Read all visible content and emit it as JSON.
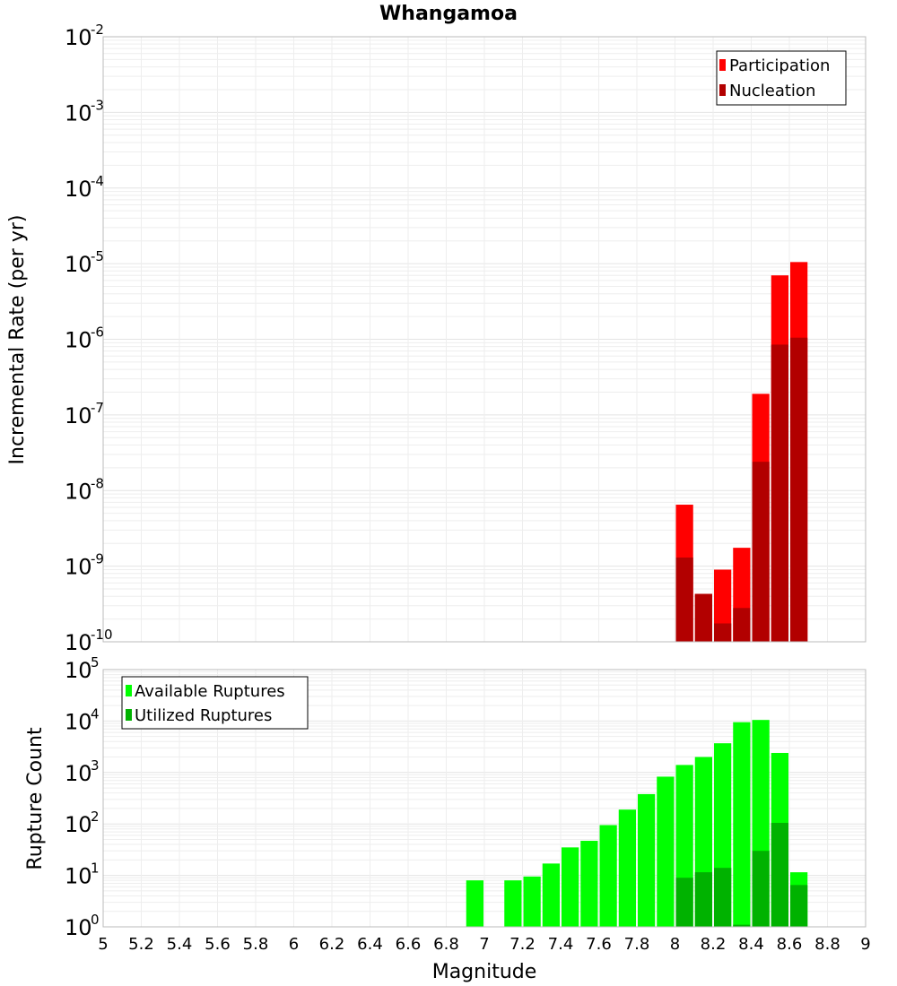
{
  "chart_data": [
    {
      "type": "bar",
      "title": "Whangamoa",
      "xlabel": "",
      "ylabel": "Incremental Rate (per yr)",
      "xlim": [
        5,
        9
      ],
      "ylim": [
        1e-10,
        0.01
      ],
      "yscale": "log",
      "grid": true,
      "legend_position": "top-right",
      "bin_width": 0.1,
      "series": [
        {
          "name": "Participation",
          "color": "#ff0000",
          "points": [
            {
              "x": 8.05,
              "y": 6.5e-09
            },
            {
              "x": 8.15,
              "y": 4.3e-10
            },
            {
              "x": 8.25,
              "y": 9e-10
            },
            {
              "x": 8.35,
              "y": 1.75e-09
            },
            {
              "x": 8.45,
              "y": 1.9e-07
            },
            {
              "x": 8.55,
              "y": 7e-06
            },
            {
              "x": 8.65,
              "y": 1.05e-05
            }
          ]
        },
        {
          "name": "Nucleation",
          "color": "#b20000",
          "points": [
            {
              "x": 8.05,
              "y": 1.3e-09
            },
            {
              "x": 8.15,
              "y": 4.3e-10
            },
            {
              "x": 8.25,
              "y": 1.75e-10
            },
            {
              "x": 8.35,
              "y": 2.8e-10
            },
            {
              "x": 8.45,
              "y": 2.4e-08
            },
            {
              "x": 8.55,
              "y": 8.5e-07
            },
            {
              "x": 8.65,
              "y": 1.05e-06
            }
          ]
        }
      ],
      "decade_ticks": [
        -10,
        -9,
        -8,
        -7,
        -6,
        -5,
        -4,
        -3,
        -2
      ]
    },
    {
      "type": "bar",
      "xlabel": "Magnitude",
      "ylabel": "Rupture Count",
      "xlim": [
        5,
        9
      ],
      "ylim": [
        1,
        100000
      ],
      "yscale": "log",
      "grid": true,
      "legend_position": "top-left",
      "bin_width": 0.1,
      "x_ticks": [
        "5",
        "5.2",
        "5.4",
        "5.6",
        "5.8",
        "6",
        "6.2",
        "6.4",
        "6.6",
        "6.8",
        "7",
        "7.2",
        "7.4",
        "7.6",
        "7.8",
        "8",
        "8.2",
        "8.4",
        "8.6",
        "8.8",
        "9"
      ],
      "series": [
        {
          "name": "Available Ruptures",
          "color": "#00ff00",
          "points": [
            {
              "x": 6.95,
              "y": 8
            },
            {
              "x": 7.15,
              "y": 8
            },
            {
              "x": 7.25,
              "y": 9.5
            },
            {
              "x": 7.35,
              "y": 17
            },
            {
              "x": 7.45,
              "y": 35
            },
            {
              "x": 7.55,
              "y": 47
            },
            {
              "x": 7.65,
              "y": 95
            },
            {
              "x": 7.75,
              "y": 190
            },
            {
              "x": 7.85,
              "y": 380
            },
            {
              "x": 7.95,
              "y": 830
            },
            {
              "x": 8.05,
              "y": 1400
            },
            {
              "x": 8.15,
              "y": 2000
            },
            {
              "x": 8.25,
              "y": 3700
            },
            {
              "x": 8.35,
              "y": 9500
            },
            {
              "x": 8.45,
              "y": 10500
            },
            {
              "x": 8.55,
              "y": 2400
            },
            {
              "x": 8.65,
              "y": 11.5
            }
          ]
        },
        {
          "name": "Utilized Ruptures",
          "color": "#00b200",
          "points": [
            {
              "x": 8.05,
              "y": 9
            },
            {
              "x": 8.15,
              "y": 11.5
            },
            {
              "x": 8.25,
              "y": 14
            },
            {
              "x": 8.35,
              "y": 1.1
            },
            {
              "x": 8.45,
              "y": 30
            },
            {
              "x": 8.55,
              "y": 105
            },
            {
              "x": 8.65,
              "y": 6.5
            }
          ]
        }
      ],
      "decade_ticks": [
        0,
        1,
        2,
        3,
        4,
        5
      ]
    }
  ]
}
